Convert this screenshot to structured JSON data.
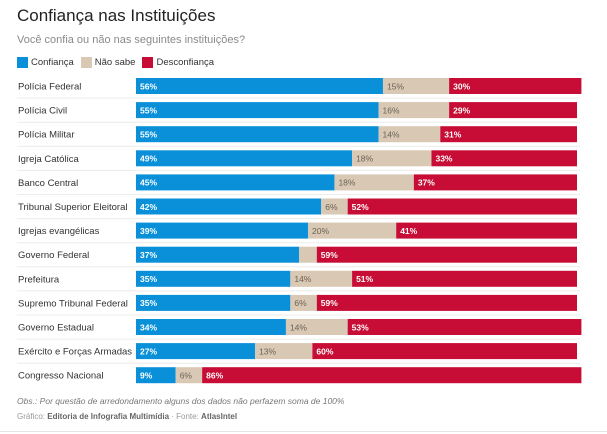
{
  "header": {
    "title": "Confiança nas Instituições",
    "subtitle": "Você confia ou não nas seguintes instituições?"
  },
  "footer": {
    "note": "Obs.: Por questão de arredondamento alguns dos dados não perfazem soma de 100%",
    "credit_prefix": "Gráfico: ",
    "credit_author": "Editoria de Infografia Multimídia",
    "source_prefix": " · Fonte: ",
    "source_name": "AtlasIntel"
  },
  "chart_data": {
    "type": "bar",
    "orientation": "horizontal-stacked",
    "title": "Confiança nas Instituições",
    "subtitle": "Você confia ou não nas seguintes instituições?",
    "legend_position": "top-left",
    "xlim": [
      0,
      100
    ],
    "grid": false,
    "categories": [
      "Polícia Federal",
      "Polícia Civil",
      "Polícia Militar",
      "Igreja Católica",
      "Banco Central",
      "Tribunal Superior Eleitoral",
      "Igrejas evangélicas",
      "Governo Federal",
      "Prefeitura",
      "Supremo Tribunal Federal",
      "Governo Estadual",
      "Exército e Forças Armadas",
      "Congresso Nacional"
    ],
    "series": [
      {
        "name": "Confiança",
        "color": "#0a90d8",
        "label_color": "#ffffff",
        "values": [
          56,
          55,
          55,
          49,
          45,
          42,
          39,
          37,
          35,
          35,
          34,
          27,
          9
        ],
        "labels": [
          "56%",
          "55%",
          "55%",
          "49%",
          "45%",
          "42%",
          "39%",
          "37%",
          "35%",
          "35%",
          "34%",
          "27%",
          "9%"
        ]
      },
      {
        "name": "Não sabe",
        "color": "#d8c8b4",
        "label_color": "#6b6256",
        "values": [
          15,
          16,
          14,
          18,
          18,
          6,
          20,
          4,
          14,
          6,
          14,
          13,
          6
        ],
        "labels": [
          "15%",
          "16%",
          "14%",
          "18%",
          "18%",
          "6%",
          "20%",
          "",
          "14%",
          "6%",
          "14%",
          "13%",
          "6%"
        ]
      },
      {
        "name": "Desconfiança",
        "color": "#c70d35",
        "label_color": "#ffffff",
        "values": [
          30,
          29,
          31,
          33,
          37,
          52,
          41,
          59,
          51,
          59,
          53,
          60,
          86
        ],
        "labels": [
          "30%",
          "29%",
          "31%",
          "33%",
          "37%",
          "52%",
          "41%",
          "59%",
          "51%",
          "59%",
          "53%",
          "60%",
          "86%"
        ]
      }
    ]
  }
}
